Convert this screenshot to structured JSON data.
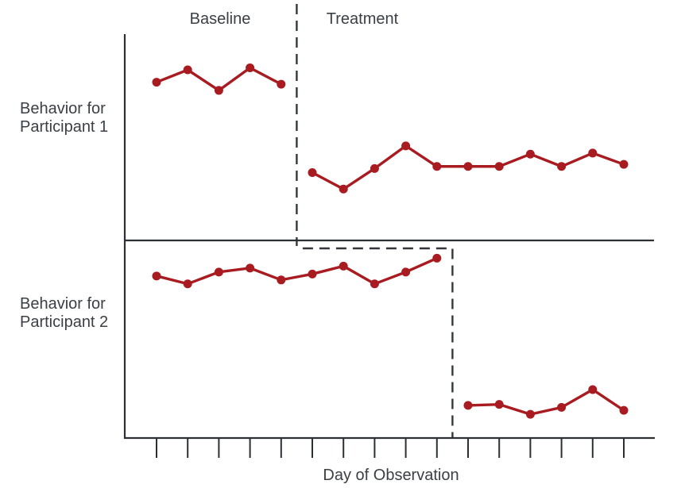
{
  "chart_data": {
    "type": "line",
    "design": "Multiple-baseline design across participants (single-subject research)",
    "title": "",
    "xlabel": "Day of Observation",
    "phase_labels": [
      "Baseline",
      "Treatment"
    ],
    "x_days": [
      1,
      2,
      3,
      4,
      5,
      6,
      7,
      8,
      9,
      10,
      11,
      12,
      13,
      14,
      15,
      16
    ],
    "y_axis": "No numeric scale shown; values estimated as relative behavior level 0-100 per panel",
    "ylim": [
      0,
      100
    ],
    "grid": false,
    "legend": "none",
    "marker": "filled-circle",
    "colors": {
      "series": "#a81c21",
      "axis": "#2c3035",
      "phase_line": "#33373c",
      "text": "#3a4046",
      "background": "#ffffff"
    },
    "panels": [
      {
        "label_lines": [
          "Behavior for",
          "Participant 1"
        ],
        "label": "Behavior for Participant 1",
        "phase_change_after_day": 5,
        "series": [
          {
            "name": "Baseline",
            "days": [
              1,
              2,
              3,
              4,
              5
            ],
            "values": [
              77,
              83,
              73,
              84,
              76
            ]
          },
          {
            "name": "Treatment",
            "days": [
              6,
              7,
              8,
              9,
              10,
              11,
              12,
              13,
              14,
              15,
              16
            ],
            "values": [
              33,
              25,
              35,
              46,
              36,
              36,
              36,
              42,
              36,
              42.5,
              37
            ]
          }
        ]
      },
      {
        "label_lines": [
          "Behavior for",
          "Participant 2"
        ],
        "label": "Behavior for Participant 2",
        "phase_change_after_day": 10,
        "series": [
          {
            "name": "Baseline",
            "days": [
              1,
              2,
              3,
              4,
              5,
              6,
              7,
              8,
              9,
              10
            ],
            "values": [
              82,
              78,
              84,
              86,
              80,
              83,
              87,
              78,
              84,
              91
            ]
          },
          {
            "name": "Treatment",
            "days": [
              11,
              12,
              13,
              14,
              15,
              16
            ],
            "values": [
              16.5,
              17,
              12,
              15.5,
              24.5,
              14
            ]
          }
        ]
      }
    ]
  }
}
